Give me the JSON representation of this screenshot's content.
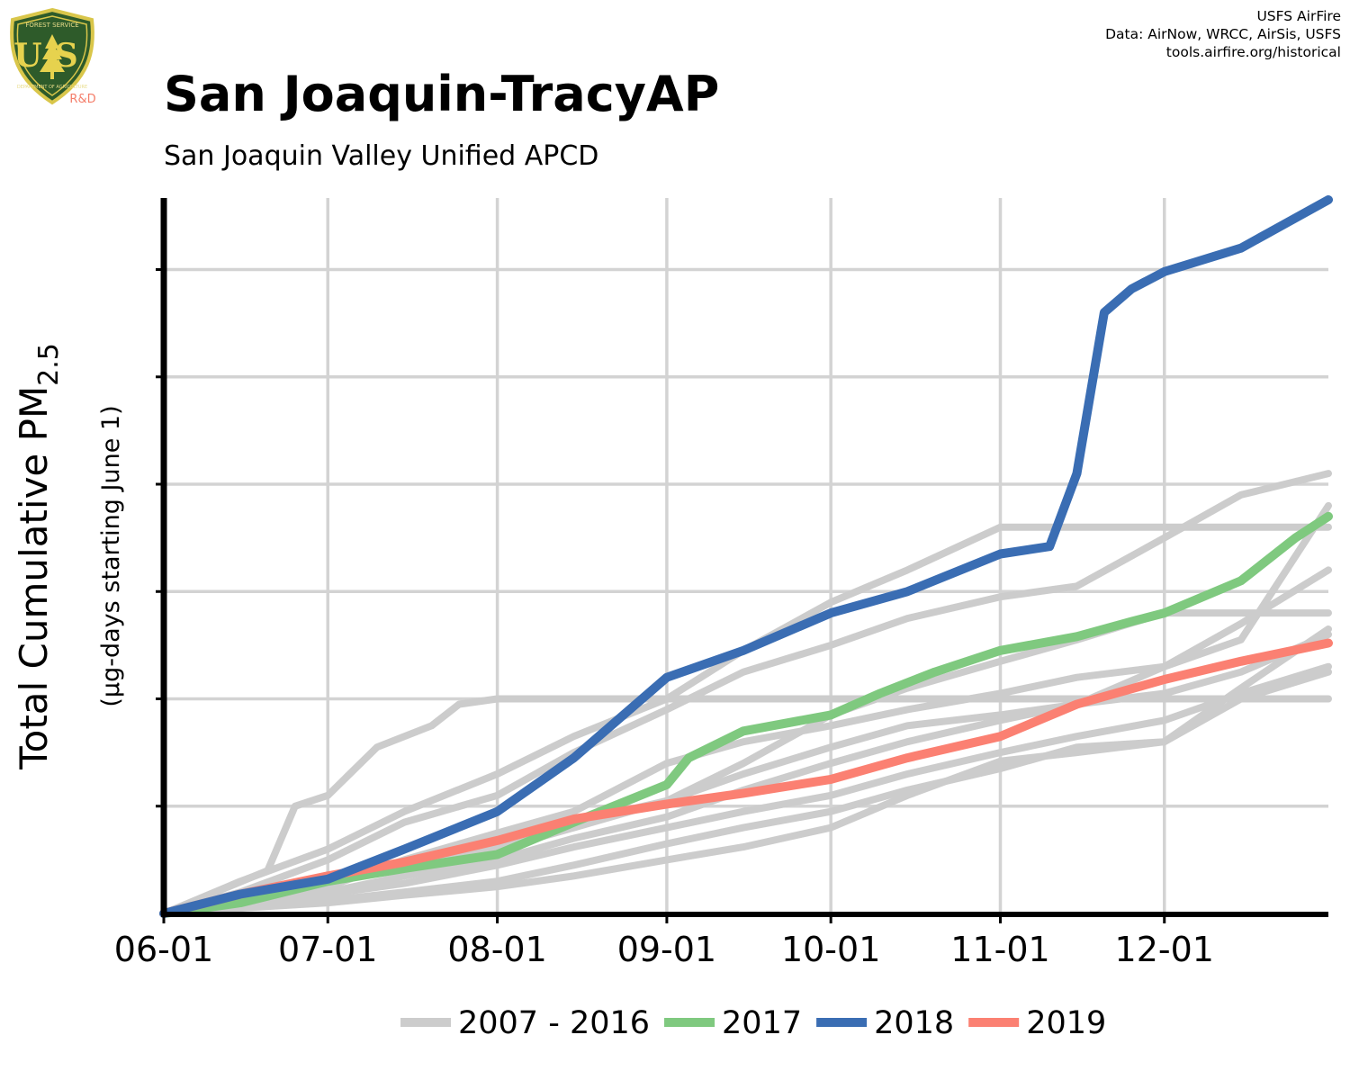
{
  "logo": {
    "top_text": "FOREST SERVICE",
    "letters": "US",
    "bottom_text": "DEPARTMENT OF AGRICULTURE",
    "tag": "R&D"
  },
  "credits": {
    "line1": "USFS AirFire",
    "line2": "Data: AirNow, WRCC, AirSis, USFS",
    "line3": "tools.airfire.org/historical"
  },
  "title": "San Joaquin-TracyAP",
  "subtitle": "San Joaquin Valley Unified APCD",
  "chart_data": {
    "type": "line",
    "ylabel": "Total Cumulative PM",
    "ylabel_subscript": "2.5",
    "ylabel_sub": "(µg-days starting June 1)",
    "xlabel": "",
    "x_start": "06-01",
    "x_end": "12-31",
    "x_ticks": [
      "06-01",
      "07-01",
      "08-01",
      "09-01",
      "10-01",
      "11-01",
      "12-01"
    ],
    "y_ticks_labels": "none",
    "y_range": [
      0,
      6.65
    ],
    "grid": true,
    "legend": "bottom",
    "colors": {
      "historical": "#cccccc",
      "2017": "#7fc97f",
      "2018": "#3a6db3",
      "2019": "#fb8072"
    },
    "legend_entries": [
      {
        "label": "2007 - 2016",
        "key": "historical"
      },
      {
        "label": "2017",
        "key": "2017"
      },
      {
        "label": "2018",
        "key": "2018"
      },
      {
        "label": "2019",
        "key": "2019"
      }
    ],
    "series": [
      {
        "key": "2018",
        "x": [
          "06-01",
          "06-15",
          "07-01",
          "07-15",
          "08-01",
          "08-15",
          "09-01",
          "09-15",
          "10-01",
          "10-15",
          "11-01",
          "11-10",
          "11-15",
          "11-20",
          "11-25",
          "12-01",
          "12-15",
          "12-31"
        ],
        "values": [
          0,
          0.18,
          0.32,
          0.6,
          0.95,
          1.45,
          2.2,
          2.45,
          2.8,
          3.0,
          3.35,
          3.42,
          4.1,
          5.6,
          5.82,
          5.98,
          6.2,
          6.65
        ]
      },
      {
        "key": "2017",
        "x": [
          "06-01",
          "06-15",
          "07-01",
          "07-15",
          "08-01",
          "08-15",
          "09-01",
          "09-05",
          "09-15",
          "10-01",
          "10-10",
          "10-20",
          "11-01",
          "11-15",
          "11-25",
          "12-01",
          "12-15",
          "12-25",
          "12-31"
        ],
        "values": [
          0,
          0.1,
          0.3,
          0.42,
          0.55,
          0.85,
          1.2,
          1.45,
          1.7,
          1.85,
          2.05,
          2.25,
          2.45,
          2.58,
          2.72,
          2.8,
          3.1,
          3.5,
          3.7
        ]
      },
      {
        "key": "2019",
        "x": [
          "06-01",
          "06-15",
          "07-01",
          "07-15",
          "08-01",
          "08-15",
          "09-01",
          "09-15",
          "10-01",
          "10-15",
          "11-01",
          "11-15",
          "12-01",
          "12-15",
          "12-31"
        ],
        "values": [
          0,
          0.18,
          0.35,
          0.48,
          0.68,
          0.88,
          1.02,
          1.12,
          1.25,
          1.45,
          1.65,
          1.95,
          2.18,
          2.35,
          2.52
        ]
      },
      {
        "key": "historical",
        "x": [
          "06-01",
          "06-20",
          "06-25",
          "07-01",
          "07-10",
          "07-20",
          "07-25",
          "08-01",
          "08-15",
          "09-01",
          "09-15",
          "10-01",
          "10-15",
          "11-01",
          "11-15",
          "12-01",
          "12-15",
          "12-31"
        ],
        "values": [
          0,
          0.4,
          1.0,
          1.1,
          1.55,
          1.75,
          1.95,
          2.0,
          2.0,
          2.0,
          2.0,
          2.0,
          2.0,
          2.0,
          2.0,
          2.0,
          2.0,
          2.0
        ]
      },
      {
        "key": "historical",
        "x": [
          "06-01",
          "06-15",
          "07-01",
          "07-15",
          "08-01",
          "08-15",
          "09-01",
          "09-15",
          "10-01",
          "10-15",
          "11-01",
          "11-15",
          "12-01",
          "12-15",
          "12-31"
        ],
        "values": [
          0,
          0.3,
          0.6,
          0.95,
          1.3,
          1.65,
          2.0,
          2.45,
          2.9,
          3.2,
          3.6,
          3.6,
          3.6,
          3.6,
          3.6
        ]
      },
      {
        "key": "historical",
        "x": [
          "06-01",
          "06-15",
          "07-01",
          "07-15",
          "08-01",
          "08-15",
          "09-01",
          "09-15",
          "10-01",
          "10-15",
          "11-01",
          "11-15",
          "12-01",
          "12-15",
          "12-31"
        ],
        "values": [
          0,
          0.2,
          0.5,
          0.85,
          1.1,
          1.5,
          1.9,
          2.25,
          2.5,
          2.75,
          2.95,
          3.05,
          3.5,
          3.9,
          4.1
        ]
      },
      {
        "key": "historical",
        "x": [
          "06-01",
          "06-15",
          "07-01",
          "07-15",
          "08-01",
          "08-15",
          "09-01",
          "09-15",
          "10-01",
          "10-15",
          "11-01",
          "11-15",
          "12-01",
          "12-15",
          "12-31"
        ],
        "values": [
          0,
          0.15,
          0.3,
          0.45,
          0.6,
          0.8,
          1.05,
          1.4,
          1.85,
          2.1,
          2.35,
          2.55,
          2.8,
          2.8,
          2.8
        ]
      },
      {
        "key": "historical",
        "x": [
          "06-01",
          "06-15",
          "07-01",
          "07-15",
          "08-01",
          "08-15",
          "09-01",
          "09-15",
          "10-01",
          "10-15",
          "11-01",
          "11-15",
          "12-01",
          "12-15",
          "12-31"
        ],
        "values": [
          0,
          0.12,
          0.28,
          0.45,
          0.65,
          0.85,
          1.05,
          1.3,
          1.55,
          1.75,
          1.85,
          1.95,
          2.3,
          2.7,
          3.2
        ]
      },
      {
        "key": "historical",
        "x": [
          "06-01",
          "06-15",
          "07-01",
          "07-15",
          "08-01",
          "08-15",
          "09-01",
          "09-15",
          "10-01",
          "10-15",
          "11-01",
          "11-15",
          "12-01",
          "12-15",
          "12-31"
        ],
        "values": [
          0,
          0.1,
          0.25,
          0.5,
          0.75,
          0.95,
          1.4,
          1.6,
          1.75,
          1.9,
          2.05,
          2.2,
          2.3,
          2.55,
          3.8
        ]
      },
      {
        "key": "historical",
        "x": [
          "06-01",
          "06-15",
          "07-01",
          "07-15",
          "08-01",
          "08-15",
          "09-01",
          "09-15",
          "10-01",
          "10-15",
          "11-01",
          "11-15",
          "12-01",
          "12-15",
          "12-31"
        ],
        "values": [
          0,
          0.1,
          0.2,
          0.35,
          0.5,
          0.7,
          0.9,
          1.15,
          1.4,
          1.6,
          1.8,
          1.95,
          2.05,
          2.25,
          2.6
        ]
      },
      {
        "key": "historical",
        "x": [
          "06-01",
          "06-15",
          "07-01",
          "07-15",
          "08-01",
          "08-15",
          "09-01",
          "09-15",
          "10-01",
          "10-15",
          "11-01",
          "11-15",
          "12-01",
          "12-15",
          "12-31"
        ],
        "values": [
          0,
          0.08,
          0.18,
          0.28,
          0.45,
          0.62,
          0.8,
          0.95,
          1.1,
          1.3,
          1.5,
          1.65,
          1.8,
          2.05,
          2.3
        ]
      },
      {
        "key": "historical",
        "x": [
          "06-01",
          "06-15",
          "07-01",
          "07-15",
          "08-01",
          "08-15",
          "09-01",
          "09-15",
          "10-01",
          "10-15",
          "11-01",
          "11-15",
          "12-01",
          "12-15",
          "12-31"
        ],
        "values": [
          0,
          0.05,
          0.12,
          0.2,
          0.3,
          0.45,
          0.65,
          0.8,
          0.95,
          1.15,
          1.35,
          1.55,
          1.6,
          2.1,
          2.65
        ]
      },
      {
        "key": "historical",
        "x": [
          "06-01",
          "06-15",
          "07-01",
          "07-15",
          "08-01",
          "08-15",
          "09-01",
          "09-15",
          "10-01",
          "10-15",
          "11-01",
          "11-15",
          "12-01",
          "12-15",
          "12-31"
        ],
        "values": [
          0,
          0.05,
          0.1,
          0.17,
          0.25,
          0.35,
          0.5,
          0.62,
          0.8,
          1.1,
          1.42,
          1.5,
          1.6,
          2.0,
          2.25
        ]
      }
    ]
  }
}
